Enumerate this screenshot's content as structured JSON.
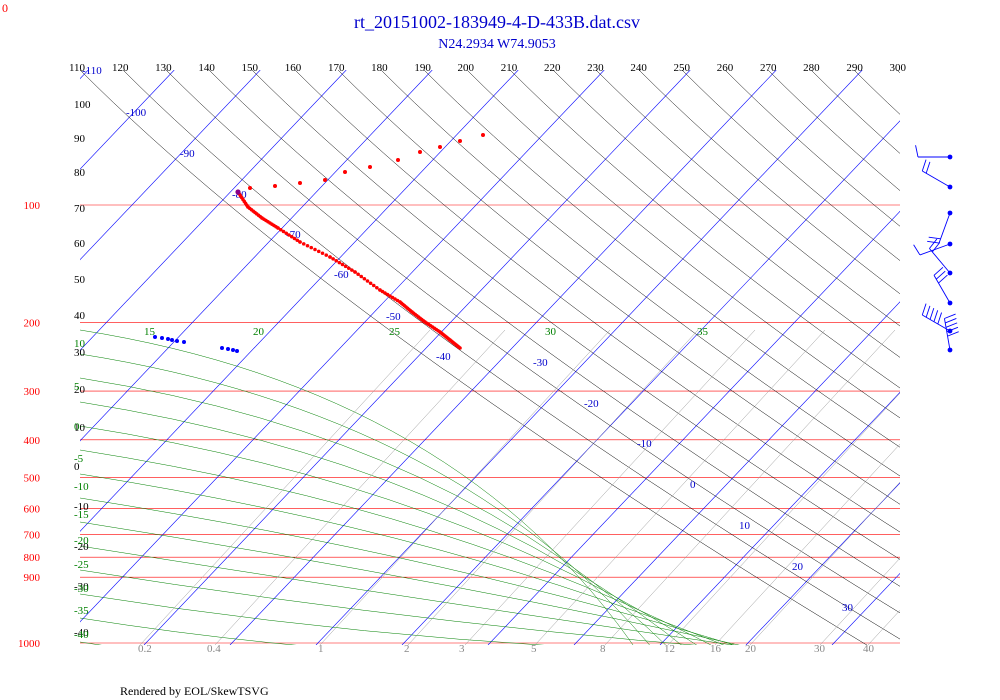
{
  "chart_data": {
    "type": "scatter",
    "chart_kind": "skew-T log-P diagram",
    "title": "rt_20151002-183949-4-D-433B.dat.csv",
    "subtitle": "N24.2934 W74.9053",
    "footer": "Rendered by EOL/SkewTSVG",
    "corner_label": "0",
    "pressure_axis": {
      "scale": "log",
      "ylim": [
        1000,
        70
      ],
      "ticks": [
        100,
        200,
        300,
        400,
        500,
        600,
        700,
        800,
        900,
        1000
      ],
      "color": "#ff0000"
    },
    "theta_top_ticks": [
      110,
      120,
      130,
      140,
      150,
      160,
      170,
      180,
      190,
      200,
      210,
      220,
      230,
      240,
      250,
      260,
      270,
      280,
      290,
      300
    ],
    "theta_left_labels": [
      100,
      90,
      80,
      70,
      60,
      50,
      40,
      30,
      20,
      10,
      0,
      -10,
      -20,
      -30,
      -40
    ],
    "isotherm_labels": [
      -110,
      -100,
      -90,
      -80,
      -70,
      -60,
      -50,
      -40,
      -30,
      -20,
      -10,
      0,
      10,
      20,
      30
    ],
    "moist_adiabat_labels": [
      15,
      20,
      25,
      30,
      35
    ],
    "moist_left_labels": [
      10,
      5,
      0,
      -5,
      -10,
      -15,
      -20,
      -25,
      -30,
      -35,
      -40
    ],
    "mixing_ratio_labels": [
      "0.2",
      "0.4",
      "1",
      "2",
      "3",
      "5",
      "8",
      "12",
      "16",
      "20",
      "30",
      "40"
    ],
    "temperature_series": {
      "name": "",
      "color": "#ff0000",
      "points": [
        {
          "p": 73,
          "t": -82
        },
        {
          "p": 78,
          "t": -78
        },
        {
          "p": 84,
          "t": -75
        },
        {
          "p": 91,
          "t": -72
        },
        {
          "p": 98,
          "t": -70
        },
        {
          "p": 107,
          "t": -67
        },
        {
          "p": 118,
          "t": -64
        },
        {
          "p": 130,
          "t": -61
        },
        {
          "p": 145,
          "t": -58
        },
        {
          "p": 160,
          "t": -54
        },
        {
          "p": 175,
          "t": -51
        },
        {
          "p": 185,
          "t": -48
        },
        {
          "p": 195,
          "t": -45
        },
        {
          "p": 205,
          "t": -42
        }
      ]
    },
    "dewpoint_series": {
      "name": "",
      "color": "#0000ff",
      "points": [
        {
          "p": 196,
          "t": -90
        },
        {
          "p": 197,
          "t": -89
        },
        {
          "p": 198,
          "t": -88
        },
        {
          "p": 199,
          "t": -87
        },
        {
          "p": 200,
          "t": -86
        },
        {
          "p": 205,
          "t": -83
        },
        {
          "p": 207,
          "t": -82
        },
        {
          "p": 209,
          "t": -81
        }
      ]
    },
    "upper_series": {
      "name": "",
      "color": "#ff0000",
      "points": [
        {
          "p": 74,
          "t": -85
        },
        {
          "p": 76,
          "t": -82
        },
        {
          "p": 77,
          "t": -80
        },
        {
          "p": 78,
          "t": -76
        },
        {
          "p": 79,
          "t": -72
        },
        {
          "p": 80,
          "t": -70
        },
        {
          "p": 81,
          "t": -67
        },
        {
          "p": 83,
          "t": -64
        },
        {
          "p": 85,
          "t": -61
        },
        {
          "p": 86,
          "t": -59
        },
        {
          "p": 88,
          "t": -56
        },
        {
          "p": 89,
          "t": -54
        },
        {
          "p": 90,
          "t": -52
        },
        {
          "p": 92,
          "t": -50
        }
      ]
    },
    "wind_barbs": [
      {
        "p": 82,
        "dir": 270,
        "speed": 10
      },
      {
        "p": 88,
        "dir": 300,
        "speed": 20
      },
      {
        "p": 92,
        "dir": 200,
        "speed": 15
      },
      {
        "p": 114,
        "dir": 250,
        "speed": 10
      },
      {
        "p": 135,
        "dir": 320,
        "speed": 20
      },
      {
        "p": 148,
        "dir": 330,
        "speed": 25
      },
      {
        "p": 164,
        "dir": 300,
        "speed": 45
      },
      {
        "p": 182,
        "dir": 350,
        "speed": 60
      }
    ]
  }
}
